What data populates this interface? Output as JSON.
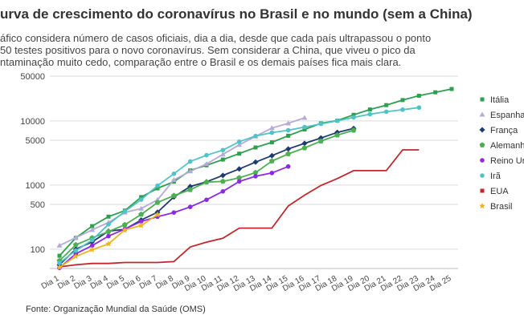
{
  "header": {
    "title": "urva de crescimento do coronavírus no Brasil e no mundo (sem a China)",
    "subtitle_lines": [
      "áfico considera número de casos oficiais, dia a dia, desde que cada país ultrapassou o ponto",
      "50 testes positivos para o novo coronavírus. Sem considerar a China, que viveu o pico da",
      "ntaminação muito cedo, comparação entre o Brasil e os demais países fica mais clara."
    ]
  },
  "footer": {
    "source": "Fonte: Organização Mundial da Saúde (OMS)"
  },
  "chart_data": {
    "type": "line",
    "scale": "log",
    "grid": true,
    "legend_position": "right",
    "ylim": [
      50,
      50000
    ],
    "y_ticks": [
      100,
      500,
      1000,
      5000,
      10000,
      50000
    ],
    "y_tick_labels": [
      "100",
      "500",
      "1000",
      "5000",
      "10000",
      "50000"
    ],
    "categories": [
      "Dia 1",
      "Dia 2",
      "Dia 3",
      "Dia 4",
      "Dia 5",
      "Dia 6",
      "Dia 7",
      "Dia 8",
      "Dia 9",
      "Dia 10",
      "Dia 11",
      "Dia 12",
      "Dia 13",
      "Dia 14",
      "Dia 15",
      "Dia 16",
      "Dia 17",
      "Dia 18",
      "Dia 19",
      "Dia 20",
      "Dia 21",
      "Dia 22",
      "Dia 23",
      "Dia 24",
      "Dia 25"
    ],
    "series": [
      {
        "name": "Itália",
        "color": "#2e9e4f",
        "marker": "square",
        "values": [
          79,
          150,
          229,
          322,
          400,
          650,
          888,
          1128,
          1694,
          2036,
          2502,
          3089,
          3858,
          4636,
          5883,
          7375,
          9172,
          10149,
          12462,
          15113,
          17660,
          21157,
          24747,
          27980,
          31506
        ]
      },
      {
        "name": "Espanha",
        "color": "#b7a9d8",
        "marker": "triangle",
        "values": [
          114,
          151,
          200,
          261,
          374,
          430,
          589,
          1204,
          1639,
          2140,
          3004,
          4231,
          5753,
          7753,
          9191,
          11178,
          null,
          null,
          null,
          null,
          null,
          null,
          null,
          null,
          null
        ]
      },
      {
        "name": "França",
        "color": "#1f3b6e",
        "marker": "diamond",
        "values": [
          57,
          100,
          130,
          191,
          204,
          285,
          377,
          653,
          949,
          1126,
          1412,
          1784,
          2281,
          2876,
          3661,
          4469,
          5423,
          6633,
          7652,
          null,
          null,
          null,
          null,
          null,
          null
        ]
      },
      {
        "name": "Alemanha",
        "color": "#4caf50",
        "marker": "pentagon",
        "values": [
          66,
          117,
          150,
          188,
          240,
          349,
          534,
          684,
          847,
          1112,
          1139,
          1296,
          1567,
          2369,
          3062,
          3795,
          4838,
          6012,
          7156,
          null,
          null,
          null,
          null,
          null,
          null
        ]
      },
      {
        "name": "Reino Unido",
        "color": "#8a2be2",
        "marker": "circle",
        "values": [
          51,
          85,
          114,
          160,
          206,
          271,
          321,
          373,
          456,
          590,
          798,
          1140,
          1372,
          1543,
          1950,
          null,
          null,
          null,
          null,
          null,
          null,
          null,
          null,
          null,
          null
        ]
      },
      {
        "name": "Irã",
        "color": "#4fc3c7",
        "marker": "circle",
        "values": [
          61,
          95,
          139,
          245,
          388,
          593,
          978,
          1501,
          2336,
          2922,
          3513,
          4747,
          5823,
          6566,
          7161,
          8042,
          9000,
          10075,
          11364,
          12729,
          13938,
          14991,
          16169,
          null,
          null
        ]
      },
      {
        "name": "EUA",
        "color": "#c0282d",
        "marker": "none",
        "values": [
          53,
          57,
          60,
          60,
          62,
          62,
          62,
          64,
          108,
          129,
          148,
          213,
          213,
          213,
          472,
          696,
          987,
          1264,
          1678,
          1678,
          1678,
          3536,
          3536,
          null,
          null
        ]
      },
      {
        "name": "Brasil",
        "color": "#f0b323",
        "marker": "star",
        "values": [
          52,
          77,
          98,
          121,
          200,
          234,
          346,
          null,
          null,
          null,
          null,
          null,
          null,
          null,
          null,
          null,
          null,
          null,
          null,
          null,
          null,
          null,
          null,
          null,
          null
        ]
      }
    ]
  }
}
